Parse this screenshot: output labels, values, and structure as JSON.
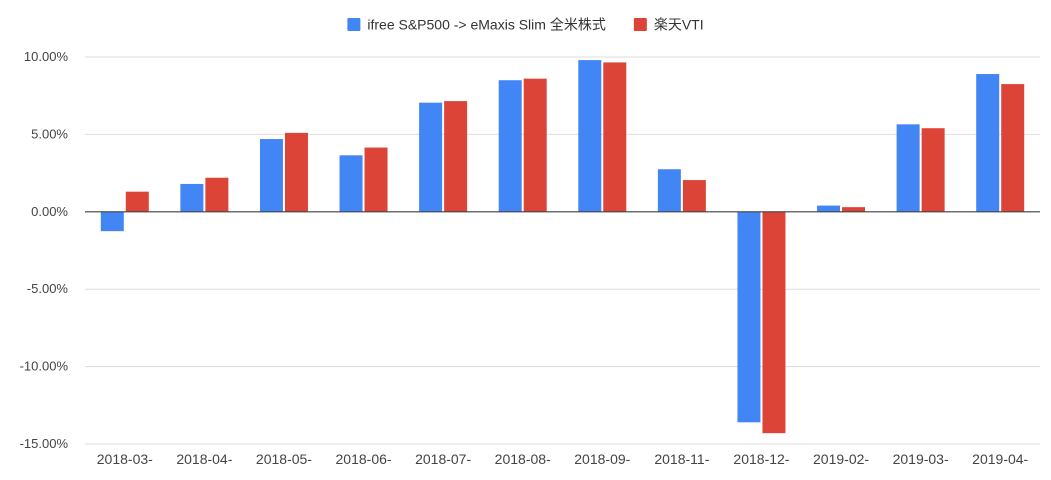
{
  "chart_data": {
    "type": "bar",
    "categories": [
      "2018-03-",
      "2018-04-",
      "2018-05-",
      "2018-06-",
      "2018-07-",
      "2018-08-",
      "2018-09-",
      "2018-11-",
      "2018-12-",
      "2019-02-",
      "2019-03-",
      "2019-04-"
    ],
    "series": [
      {
        "name": "ifree S&P500 -> eMaxis Slim 全米株式",
        "color": "#4285f4",
        "values": [
          -1.25,
          1.8,
          4.7,
          3.65,
          7.05,
          8.5,
          9.8,
          2.75,
          -13.6,
          0.4,
          5.65,
          8.9
        ]
      },
      {
        "name": "楽天VTI",
        "color": "#db4437",
        "values": [
          1.3,
          2.2,
          5.1,
          4.15,
          7.15,
          8.6,
          9.65,
          2.05,
          -14.3,
          0.3,
          5.4,
          8.25
        ]
      }
    ],
    "ylim": [
      -15,
      10
    ],
    "yticks": [
      10,
      5,
      0,
      -5,
      -10,
      -15
    ],
    "ytick_labels": [
      "10.00%",
      "5.00%",
      "0.00%",
      "-5.00%",
      "-10.00%",
      "-15.00%"
    ],
    "grid": true,
    "legend_position": "top-center"
  }
}
